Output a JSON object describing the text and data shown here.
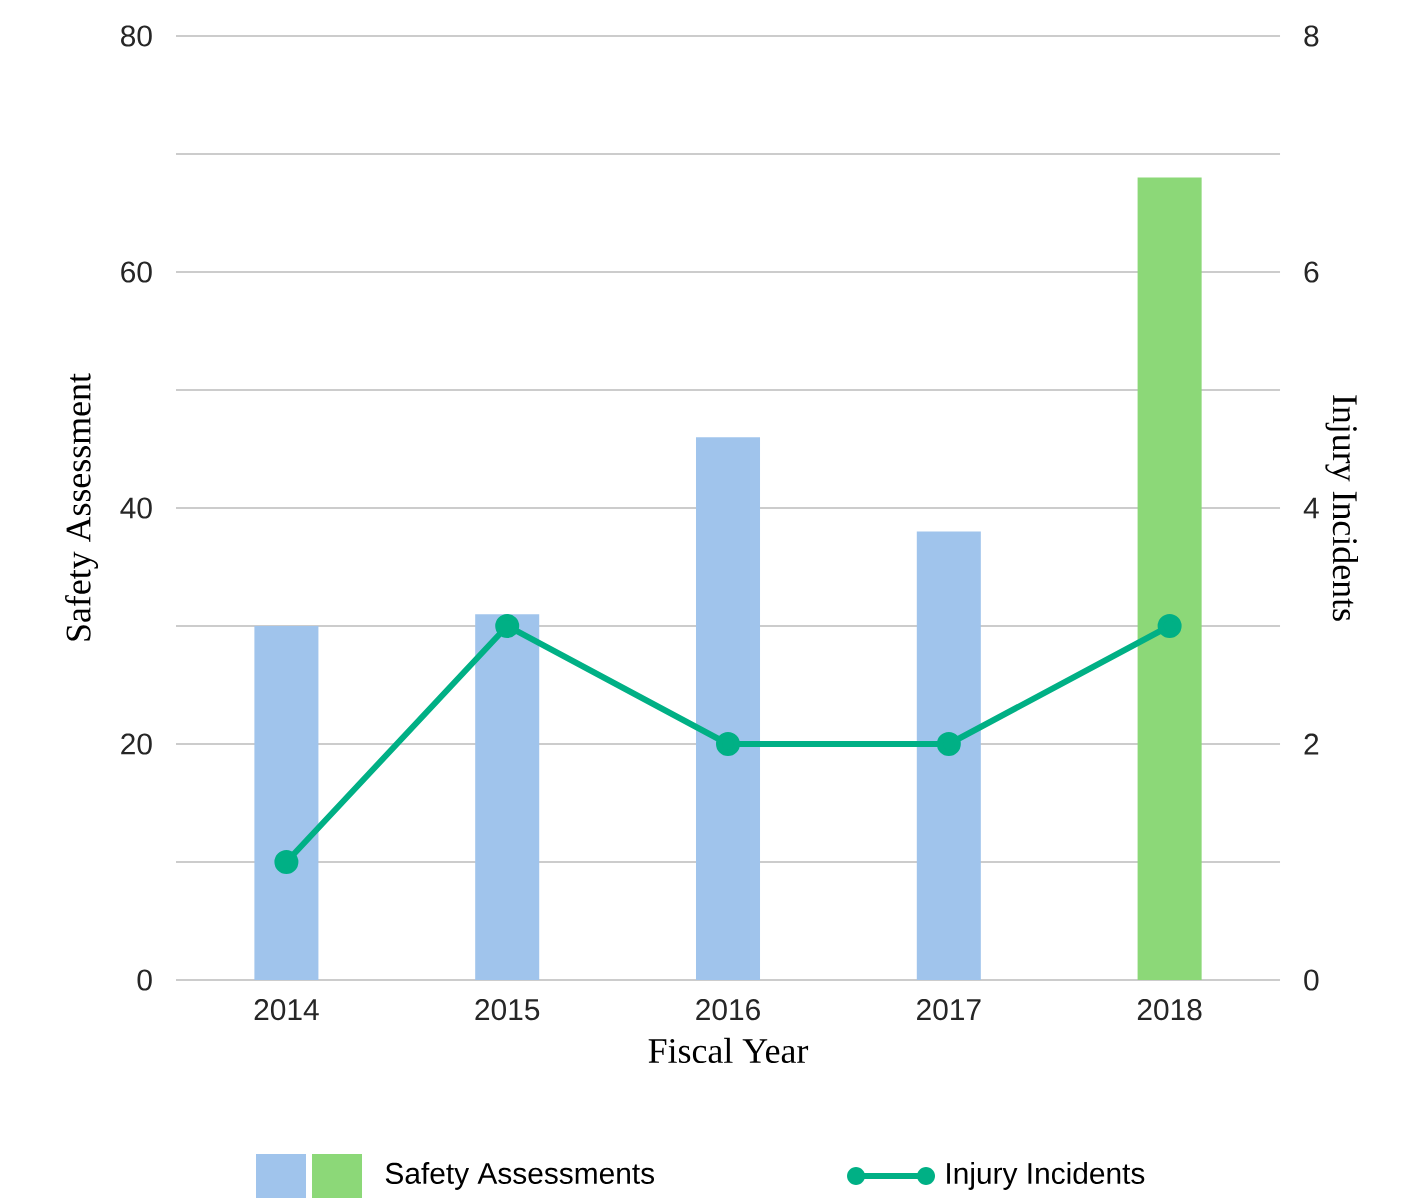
{
  "chart_data": {
    "type": "bar",
    "xlabel": "Fiscal Year",
    "ylabel": "Safety Assessment",
    "y2label": "Injury Incidents",
    "categories": [
      "2014",
      "2015",
      "2016",
      "2017",
      "2018"
    ],
    "series": [
      {
        "name": "Safety Assessments",
        "colors": [
          "#a0c4ec",
          "#a0c4ec",
          "#a0c4ec",
          "#a0c4ec",
          "#8cd878"
        ],
        "values": [
          30,
          31,
          46,
          38,
          68
        ]
      },
      {
        "name": "Injury Incidents",
        "type": "line",
        "axis": "y2",
        "color": "#00b085",
        "values": [
          1,
          3,
          2,
          2,
          3
        ]
      }
    ],
    "ylim": [
      0,
      80
    ],
    "yticks": [
      0,
      {
        "value": 10,
        "label": null
      },
      20,
      {
        "value": 30,
        "label": null
      },
      40,
      {
        "value": 50,
        "label": null
      },
      60,
      {
        "value": 70,
        "label": null
      },
      80
    ],
    "y2lim": [
      0,
      8
    ],
    "y2ticks": [
      0,
      2,
      4,
      6,
      8
    ],
    "grid": "y",
    "marker": "circle",
    "legend": "bottom"
  }
}
